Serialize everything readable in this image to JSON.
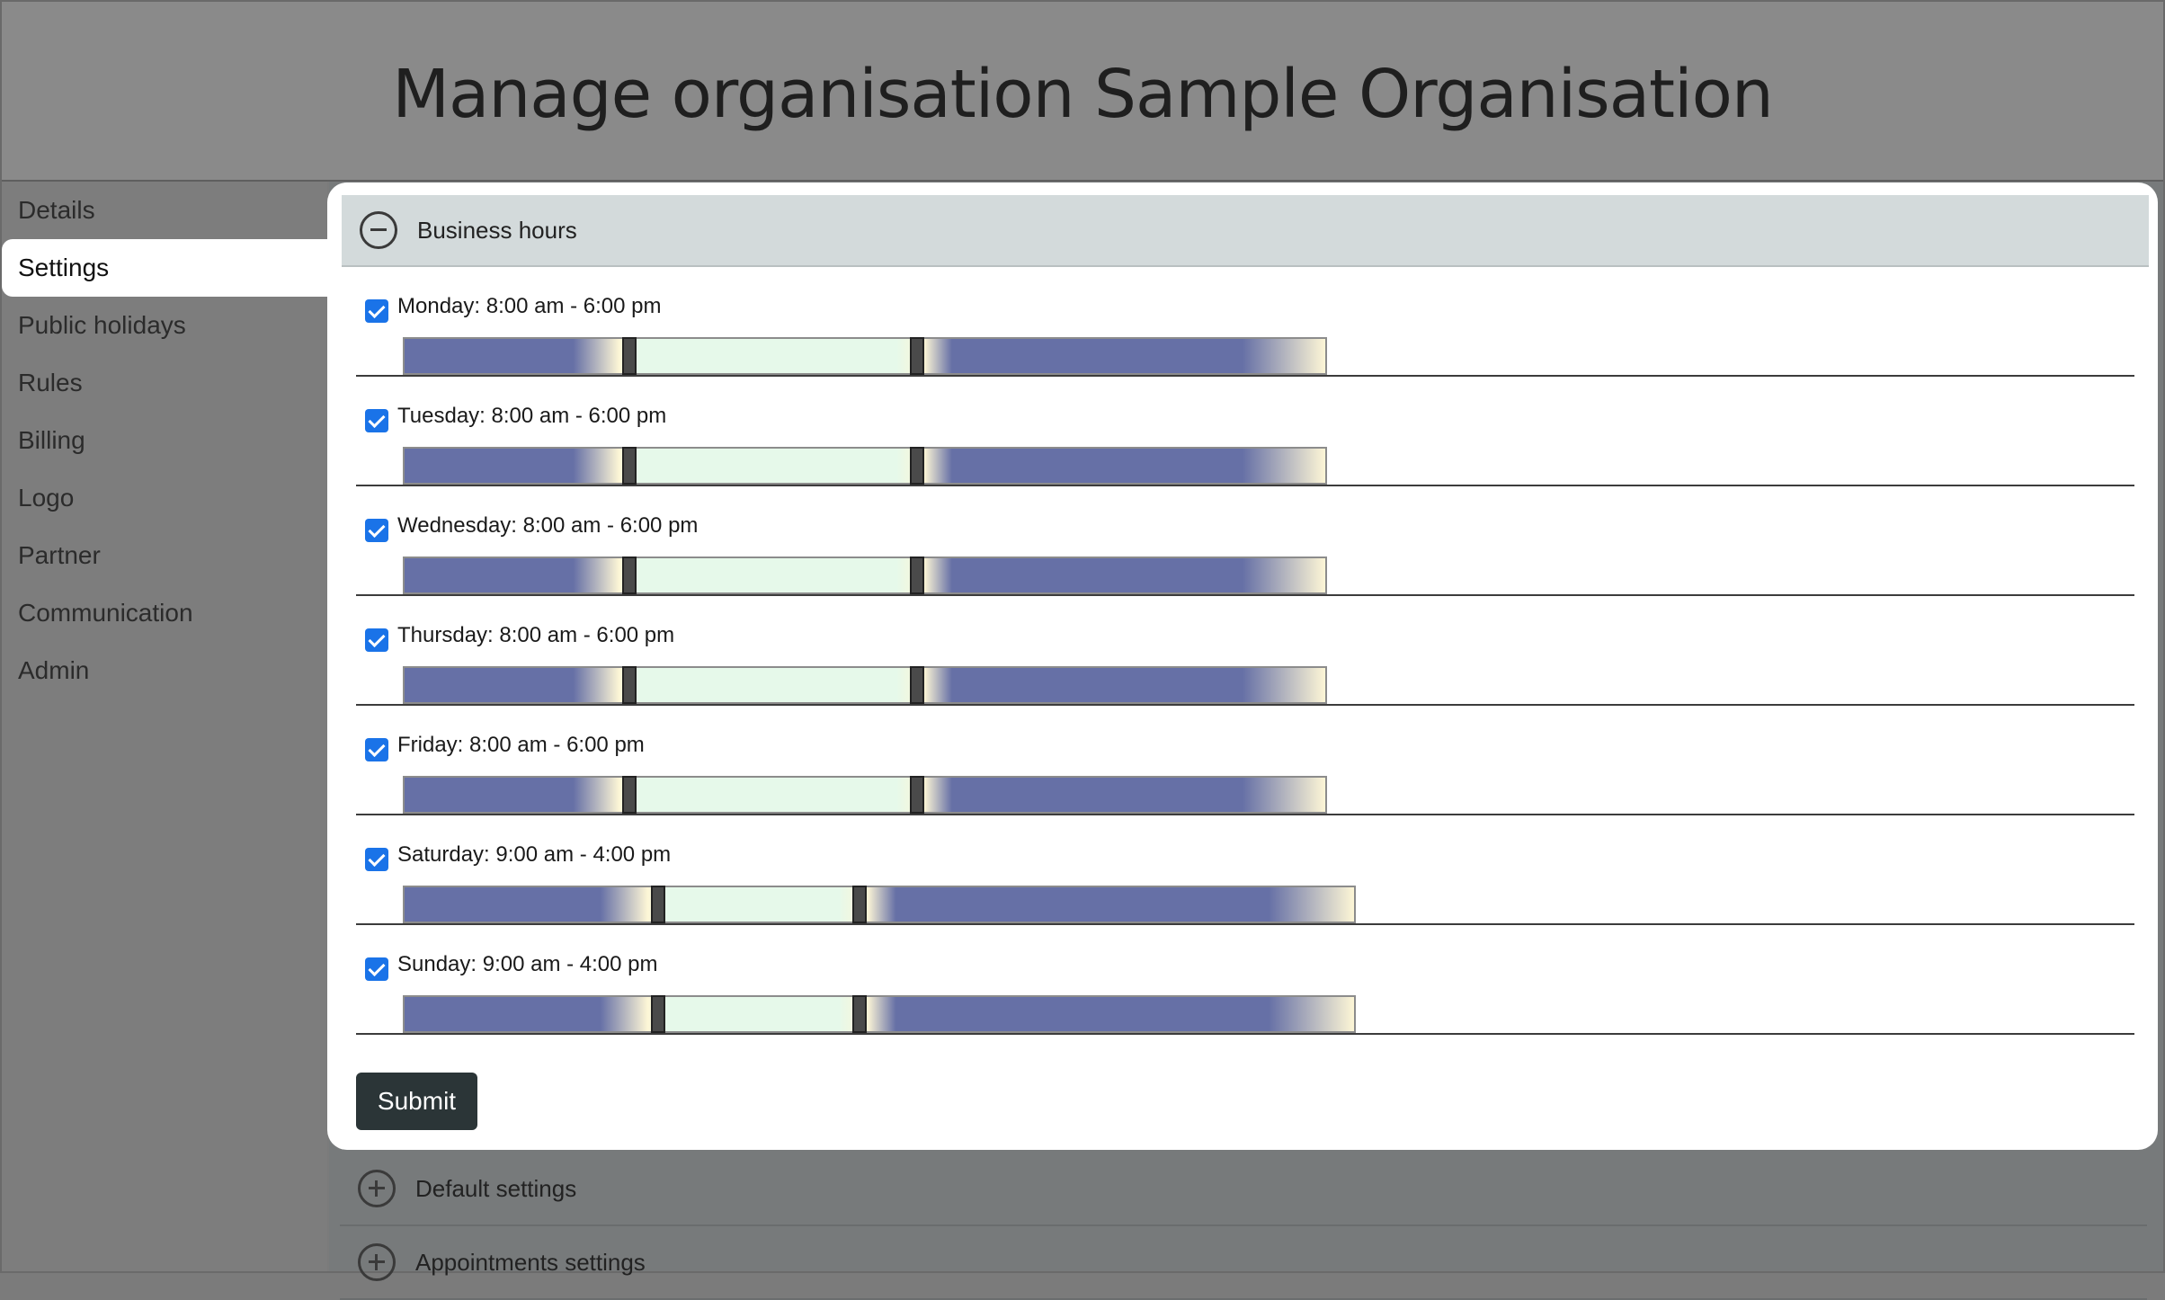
{
  "header": {
    "title": "Manage organisation Sample Organisation"
  },
  "sidebar": {
    "items": [
      {
        "label": "Details"
      },
      {
        "label": "Settings"
      },
      {
        "label": "Public holidays"
      },
      {
        "label": "Rules"
      },
      {
        "label": "Billing"
      },
      {
        "label": "Logo"
      },
      {
        "label": "Partner"
      },
      {
        "label": "Communication"
      },
      {
        "label": "Admin"
      }
    ],
    "active": "Settings"
  },
  "business_hours": {
    "title": "Business hours",
    "days": [
      {
        "label": "Monday: 8:00 am - 6:00 pm",
        "checked": true,
        "start_hour": 8,
        "end_hour": 18
      },
      {
        "label": "Tuesday: 8:00 am - 6:00 pm",
        "checked": true,
        "start_hour": 8,
        "end_hour": 18
      },
      {
        "label": "Wednesday: 8:00 am - 6:00 pm",
        "checked": true,
        "start_hour": 8,
        "end_hour": 18
      },
      {
        "label": "Thursday: 8:00 am - 6:00 pm",
        "checked": true,
        "start_hour": 8,
        "end_hour": 18
      },
      {
        "label": "Friday: 8:00 am - 6:00 pm",
        "checked": true,
        "start_hour": 8,
        "end_hour": 18
      },
      {
        "label": "Saturday: 9:00 am - 4:00 pm",
        "checked": true,
        "start_hour": 9,
        "end_hour": 16
      },
      {
        "label": "Sunday: 9:00 am - 4:00 pm",
        "checked": true,
        "start_hour": 9,
        "end_hour": 16
      }
    ],
    "submit_label": "Submit"
  },
  "other_sections": [
    {
      "label": "Default settings"
    },
    {
      "label": "Appointments settings"
    }
  ],
  "colors": {
    "night": "#6670a6",
    "dawn": "#fdf6d6",
    "business": "#e6f9ea",
    "checkbox": "#1a73e8",
    "submit_bg": "#2b3537"
  }
}
